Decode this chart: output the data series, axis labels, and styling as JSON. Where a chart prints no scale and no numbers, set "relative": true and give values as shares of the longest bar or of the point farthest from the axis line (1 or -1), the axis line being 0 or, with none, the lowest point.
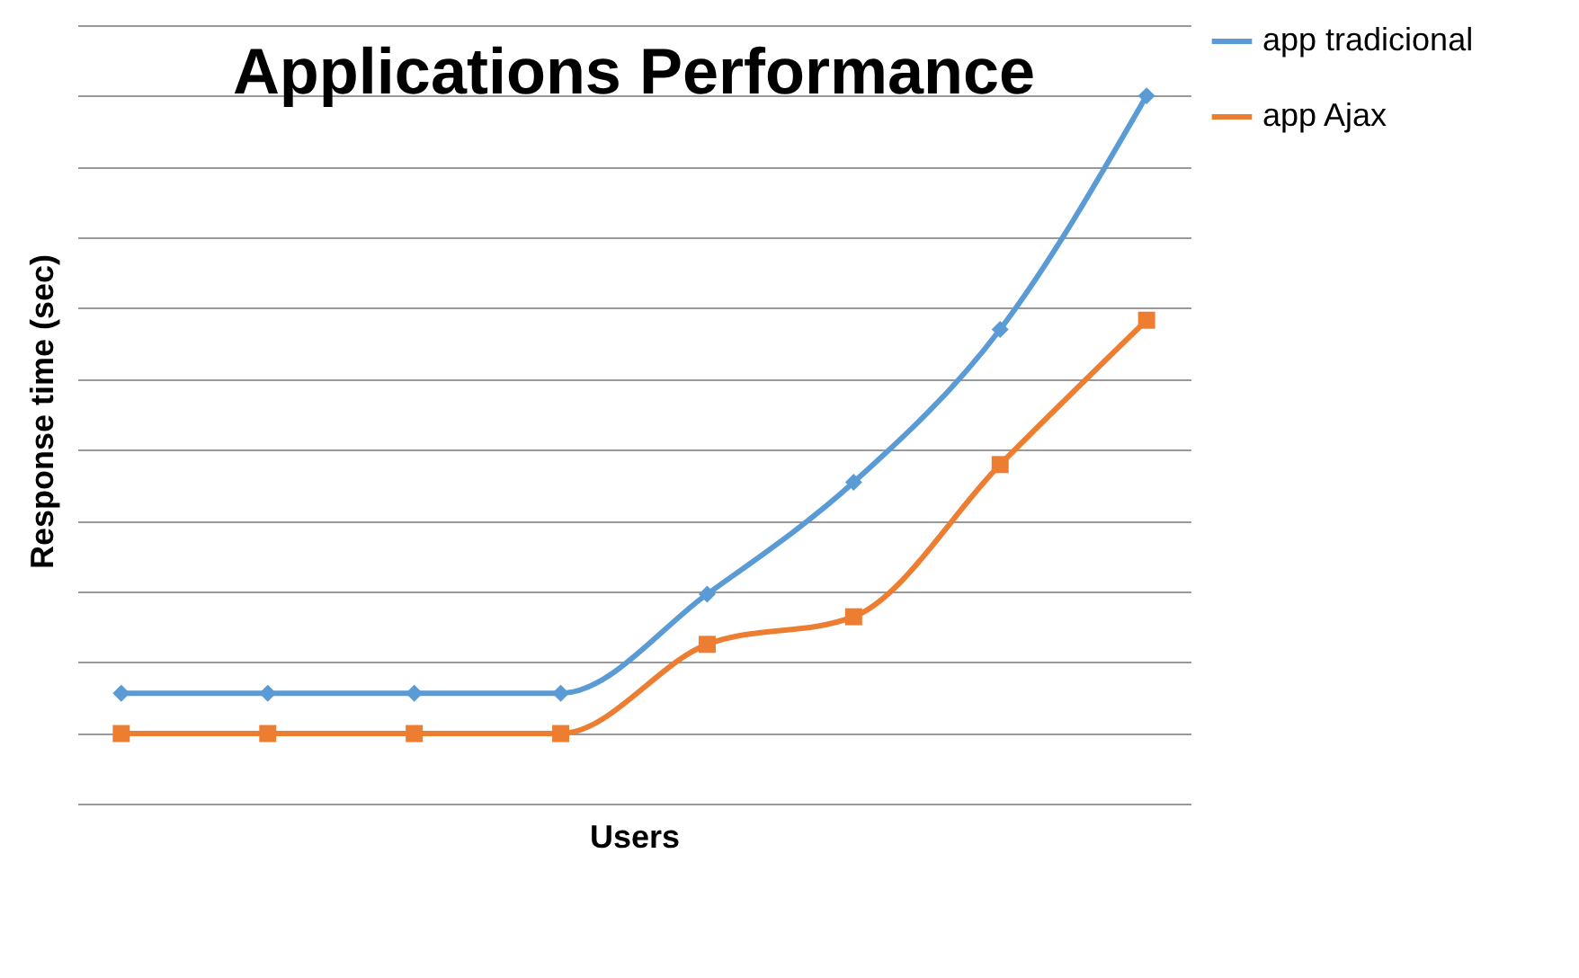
{
  "chart_data": {
    "type": "line",
    "title": "Applications Performance",
    "xlabel": "Users",
    "ylabel": "Response time (sec)",
    "relative": true,
    "grid": "y",
    "legend": "right",
    "line_style": "solid",
    "categories": [
      null,
      null,
      null,
      null,
      null,
      null,
      null,
      null
    ],
    "series": [
      {
        "name": "app tradicional",
        "color": "#5b9bd5",
        "marker": "diamond",
        "values": [
          0.156,
          0.156,
          0.156,
          0.156,
          0.296,
          0.454,
          0.67,
          1
        ]
      },
      {
        "name": "app Ajax",
        "color": "#ed7d31",
        "marker": "square",
        "values": [
          0.099,
          0.099,
          0.099,
          0.099,
          0.225,
          0.264,
          0.479,
          0.683
        ]
      }
    ]
  }
}
